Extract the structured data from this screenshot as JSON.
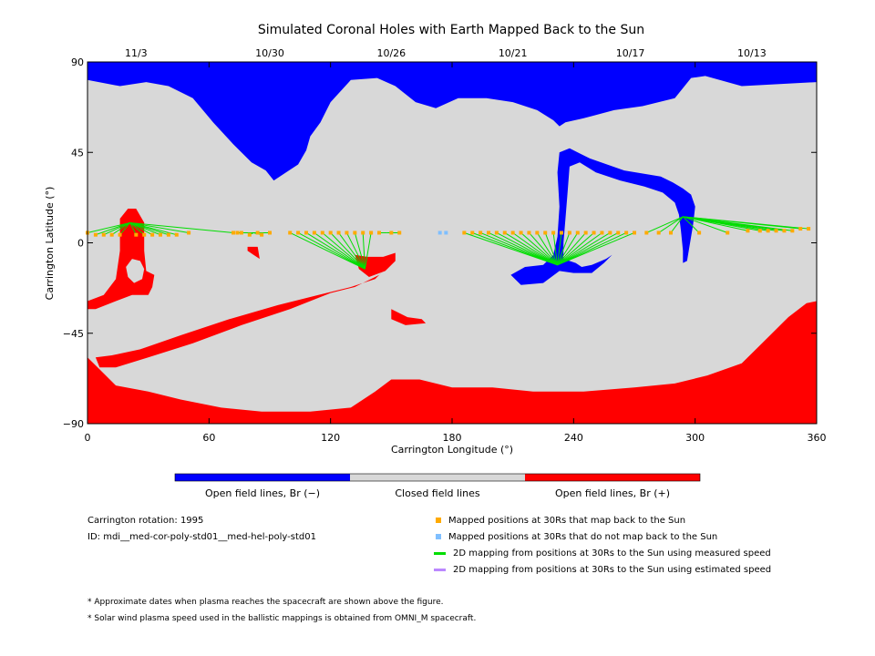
{
  "chart_data": {
    "type": "map",
    "title": "Simulated Coronal Holes with Earth Mapped Back to the Sun",
    "xlabel": "Carrington Longitude (°)",
    "ylabel": "Carrington Latitude (°)",
    "xlim": [
      0,
      360
    ],
    "ylim": [
      -90,
      90
    ],
    "x_ticks": [
      "0",
      "60",
      "120",
      "180",
      "240",
      "300",
      "360"
    ],
    "y_ticks": [
      "90",
      "45",
      "0",
      "-45",
      "-90"
    ],
    "top_dates": [
      {
        "lon": 24,
        "label": "11/3"
      },
      {
        "lon": 90,
        "label": "10/30"
      },
      {
        "lon": 150,
        "label": "10/26"
      },
      {
        "lon": 210,
        "label": "10/21"
      },
      {
        "lon": 268,
        "label": "10/17"
      },
      {
        "lon": 328,
        "label": "10/13"
      }
    ],
    "colors": {
      "open_negative": "#0000ff",
      "closed": "#d8d8d8",
      "open_positive": "#ff0000",
      "mapped_back": "#ffaa00",
      "not_mapped": "#7fbfff",
      "measured_line": "#00dd00",
      "estimated_line": "#bb88ff"
    },
    "colorbar": [
      {
        "label": "Open field lines, Br (−)",
        "color": "#0000ff"
      },
      {
        "label": "Closed field lines",
        "color": "#d8d8d8"
      },
      {
        "label": "Open field lines, Br (+)",
        "color": "#ff0000"
      }
    ],
    "regions": [
      {
        "name": "north polar hole",
        "polarity": "-",
        "outline": [
          [
            0,
            90
          ],
          [
            360,
            90
          ],
          [
            360,
            80
          ],
          [
            323,
            78
          ],
          [
            305,
            83
          ],
          [
            298,
            82
          ],
          [
            290,
            72
          ],
          [
            274,
            68
          ],
          [
            260,
            66
          ],
          [
            245,
            62
          ],
          [
            236,
            60
          ],
          [
            233,
            58
          ],
          [
            230,
            61
          ],
          [
            222,
            66
          ],
          [
            210,
            70
          ],
          [
            197,
            72
          ],
          [
            183,
            72
          ],
          [
            172,
            67
          ],
          [
            162,
            70
          ],
          [
            152,
            78
          ],
          [
            143,
            82
          ],
          [
            130,
            81
          ],
          [
            120,
            70
          ],
          [
            115,
            60
          ],
          [
            110,
            53
          ],
          [
            108,
            46
          ],
          [
            104,
            39
          ],
          [
            98,
            35
          ],
          [
            92,
            31
          ],
          [
            88,
            36
          ],
          [
            81,
            40
          ],
          [
            72,
            49
          ],
          [
            62,
            60
          ],
          [
            52,
            72
          ],
          [
            40,
            78
          ],
          [
            29,
            80
          ],
          [
            16,
            78
          ],
          [
            0,
            81
          ]
        ]
      },
      {
        "name": "mid-latitude hole",
        "polarity": "-",
        "outline": [
          [
            233,
            45
          ],
          [
            238,
            47
          ],
          [
            248,
            42
          ],
          [
            265,
            36
          ],
          [
            283,
            33
          ],
          [
            289,
            30
          ],
          [
            294,
            27
          ],
          [
            298,
            24
          ],
          [
            300,
            18
          ],
          [
            299,
            9
          ],
          [
            297,
            -3
          ],
          [
            296,
            -9
          ],
          [
            294,
            -10
          ],
          [
            294,
            -4
          ],
          [
            293,
            6
          ],
          [
            292,
            14
          ],
          [
            290,
            20
          ],
          [
            284,
            25
          ],
          [
            275,
            28
          ],
          [
            263,
            31
          ],
          [
            251,
            35
          ],
          [
            243,
            40
          ],
          [
            238,
            38
          ],
          [
            237,
            25
          ],
          [
            236,
            12
          ],
          [
            235,
            0
          ],
          [
            235,
            -8
          ],
          [
            241,
            -10
          ],
          [
            244,
            -12
          ],
          [
            249,
            -11
          ],
          [
            256,
            -8
          ],
          [
            259,
            -6
          ],
          [
            255,
            -10
          ],
          [
            249,
            -15
          ],
          [
            240,
            -15
          ],
          [
            233,
            -14
          ],
          [
            225,
            -20
          ],
          [
            214,
            -21
          ],
          [
            209,
            -16
          ],
          [
            216,
            -12
          ],
          [
            225,
            -11
          ],
          [
            230,
            -6
          ],
          [
            232,
            3
          ],
          [
            233,
            18
          ],
          [
            232,
            35
          ]
        ]
      },
      {
        "name": "south polar hole",
        "polarity": "+",
        "outline": [
          [
            0,
            -90
          ],
          [
            360,
            -90
          ],
          [
            360,
            -29
          ],
          [
            355,
            -30
          ],
          [
            346,
            -37
          ],
          [
            337,
            -46
          ],
          [
            323,
            -60
          ],
          [
            306,
            -66
          ],
          [
            290,
            -70
          ],
          [
            270,
            -72
          ],
          [
            245,
            -74
          ],
          [
            220,
            -74
          ],
          [
            200,
            -72
          ],
          [
            180,
            -72
          ],
          [
            164,
            -68
          ],
          [
            150,
            -68
          ],
          [
            142,
            -74
          ],
          [
            130,
            -82
          ],
          [
            110,
            -84
          ],
          [
            86,
            -84
          ],
          [
            66,
            -82
          ],
          [
            46,
            -78
          ],
          [
            30,
            -74
          ],
          [
            14,
            -71
          ],
          [
            6,
            -63
          ],
          [
            0,
            -57
          ]
        ]
      },
      {
        "name": "southern diagonal arm",
        "polarity": "+",
        "outline": [
          [
            4,
            -57
          ],
          [
            12,
            -56
          ],
          [
            26,
            -53
          ],
          [
            46,
            -46
          ],
          [
            70,
            -38
          ],
          [
            94,
            -31
          ],
          [
            114,
            -26
          ],
          [
            130,
            -22
          ],
          [
            142,
            -18
          ],
          [
            148,
            -12
          ],
          [
            144,
            -16
          ],
          [
            132,
            -22
          ],
          [
            120,
            -25
          ],
          [
            100,
            -33
          ],
          [
            76,
            -41
          ],
          [
            52,
            -50
          ],
          [
            30,
            -57
          ],
          [
            14,
            -62
          ],
          [
            6,
            -62
          ]
        ]
      },
      {
        "name": "western arm",
        "polarity": "+",
        "outline": [
          [
            0,
            -29
          ],
          [
            8,
            -26
          ],
          [
            14,
            -18
          ],
          [
            16,
            -4
          ],
          [
            16,
            12
          ],
          [
            20,
            17
          ],
          [
            24,
            17
          ],
          [
            28,
            10
          ],
          [
            28,
            -4
          ],
          [
            29,
            -14
          ],
          [
            33,
            -16
          ],
          [
            32,
            -22
          ],
          [
            30,
            -26
          ],
          [
            22,
            -26
          ],
          [
            14,
            -29
          ],
          [
            4,
            -33
          ],
          [
            0,
            -33
          ]
        ]
      },
      {
        "name": "longitude 80 spot",
        "polarity": "+",
        "outline": [
          [
            79,
            -2
          ],
          [
            84,
            -2
          ],
          [
            85,
            -8
          ],
          [
            82,
            -6
          ],
          [
            79,
            -4
          ]
        ]
      },
      {
        "name": "longitude 140 spot",
        "polarity": "+",
        "outline": [
          [
            132,
            -6
          ],
          [
            138,
            -7
          ],
          [
            146,
            -7
          ],
          [
            152,
            -5
          ],
          [
            152,
            -9
          ],
          [
            147,
            -14
          ],
          [
            139,
            -17
          ],
          [
            134,
            -13
          ]
        ]
      },
      {
        "name": "longitude 150 patch",
        "polarity": "+",
        "outline": [
          [
            150,
            -33
          ],
          [
            158,
            -37
          ],
          [
            165,
            -38
          ],
          [
            167,
            -40
          ],
          [
            157,
            -41
          ],
          [
            150,
            -38
          ]
        ]
      }
    ],
    "closed_islands": [
      {
        "name": "hole in western arm",
        "outline": [
          [
            19,
            -12
          ],
          [
            22,
            -8
          ],
          [
            26,
            -9
          ],
          [
            28,
            -13
          ],
          [
            27,
            -18
          ],
          [
            23,
            -20
          ],
          [
            20,
            -17
          ]
        ]
      }
    ],
    "footpoints": [
      {
        "lon": 21,
        "lat": 10
      },
      {
        "lon": 82,
        "lat": 5
      },
      {
        "lon": 137,
        "lat": -13
      },
      {
        "lon": 148,
        "lat": 5
      },
      {
        "lon": 232,
        "lat": -11
      },
      {
        "lon": 294,
        "lat": 13
      }
    ],
    "mapped_points_back": [
      {
        "lon": 0,
        "lat": 5,
        "foot": 0
      },
      {
        "lon": 4,
        "lat": 4,
        "foot": 0
      },
      {
        "lon": 8,
        "lat": 4,
        "foot": 0
      },
      {
        "lon": 12,
        "lat": 4,
        "foot": 0
      },
      {
        "lon": 16,
        "lat": 4,
        "foot": 0
      },
      {
        "lon": 24,
        "lat": 4,
        "foot": 0
      },
      {
        "lon": 28,
        "lat": 4,
        "foot": 0
      },
      {
        "lon": 32,
        "lat": 4,
        "foot": 0
      },
      {
        "lon": 36,
        "lat": 4,
        "foot": 0
      },
      {
        "lon": 40,
        "lat": 4,
        "foot": 0
      },
      {
        "lon": 44,
        "lat": 4,
        "foot": 0
      },
      {
        "lon": 50,
        "lat": 5,
        "foot": 0
      },
      {
        "lon": 72,
        "lat": 5,
        "foot": 0
      },
      {
        "lon": 74,
        "lat": 5,
        "foot": 1
      },
      {
        "lon": 76,
        "lat": 5,
        "foot": 1
      },
      {
        "lon": 80,
        "lat": 4,
        "foot": 1
      },
      {
        "lon": 84,
        "lat": 5,
        "foot": 1
      },
      {
        "lon": 86,
        "lat": 4,
        "foot": 1
      },
      {
        "lon": 90,
        "lat": 5,
        "foot": 1
      },
      {
        "lon": 100,
        "lat": 5,
        "foot": 2
      },
      {
        "lon": 104,
        "lat": 5,
        "foot": 2
      },
      {
        "lon": 108,
        "lat": 5,
        "foot": 2
      },
      {
        "lon": 112,
        "lat": 5,
        "foot": 2
      },
      {
        "lon": 116,
        "lat": 5,
        "foot": 2
      },
      {
        "lon": 120,
        "lat": 5,
        "foot": 2
      },
      {
        "lon": 124,
        "lat": 5,
        "foot": 2
      },
      {
        "lon": 128,
        "lat": 5,
        "foot": 2
      },
      {
        "lon": 132,
        "lat": 5,
        "foot": 2
      },
      {
        "lon": 136,
        "lat": 5,
        "foot": 2
      },
      {
        "lon": 140,
        "lat": 5,
        "foot": 2
      },
      {
        "lon": 144,
        "lat": 5,
        "foot": 3
      },
      {
        "lon": 150,
        "lat": 5,
        "foot": 3
      },
      {
        "lon": 154,
        "lat": 5,
        "foot": 3
      },
      {
        "lon": 186,
        "lat": 5,
        "foot": 4
      },
      {
        "lon": 190,
        "lat": 5,
        "foot": 4
      },
      {
        "lon": 194,
        "lat": 5,
        "foot": 4
      },
      {
        "lon": 198,
        "lat": 5,
        "foot": 4
      },
      {
        "lon": 202,
        "lat": 5,
        "foot": 4
      },
      {
        "lon": 206,
        "lat": 5,
        "foot": 4
      },
      {
        "lon": 210,
        "lat": 5,
        "foot": 4
      },
      {
        "lon": 214,
        "lat": 5,
        "foot": 4
      },
      {
        "lon": 218,
        "lat": 5,
        "foot": 4
      },
      {
        "lon": 222,
        "lat": 5,
        "foot": 4
      },
      {
        "lon": 226,
        "lat": 5,
        "foot": 4
      },
      {
        "lon": 230,
        "lat": 5,
        "foot": 4
      },
      {
        "lon": 234,
        "lat": 5,
        "foot": 4
      },
      {
        "lon": 238,
        "lat": 5,
        "foot": 4
      },
      {
        "lon": 242,
        "lat": 5,
        "foot": 4
      },
      {
        "lon": 246,
        "lat": 5,
        "foot": 4
      },
      {
        "lon": 250,
        "lat": 5,
        "foot": 4
      },
      {
        "lon": 254,
        "lat": 5,
        "foot": 4
      },
      {
        "lon": 258,
        "lat": 5,
        "foot": 4
      },
      {
        "lon": 262,
        "lat": 5,
        "foot": 4
      },
      {
        "lon": 266,
        "lat": 5,
        "foot": 4
      },
      {
        "lon": 270,
        "lat": 5,
        "foot": 4
      },
      {
        "lon": 276,
        "lat": 5,
        "foot": 5
      },
      {
        "lon": 282,
        "lat": 5,
        "foot": 5
      },
      {
        "lon": 288,
        "lat": 5,
        "foot": 5
      },
      {
        "lon": 302,
        "lat": 5,
        "foot": 5
      },
      {
        "lon": 316,
        "lat": 5,
        "foot": 5
      },
      {
        "lon": 326,
        "lat": 6,
        "foot": 5
      },
      {
        "lon": 332,
        "lat": 6,
        "foot": 5
      },
      {
        "lon": 336,
        "lat": 6,
        "foot": 5
      },
      {
        "lon": 340,
        "lat": 6,
        "foot": 5
      },
      {
        "lon": 344,
        "lat": 6,
        "foot": 5
      },
      {
        "lon": 348,
        "lat": 6,
        "foot": 5
      },
      {
        "lon": 352,
        "lat": 7,
        "foot": 5
      },
      {
        "lon": 356,
        "lat": 7,
        "foot": 5
      }
    ],
    "mapped_points_not_back": [
      {
        "lon": 174,
        "lat": 5
      },
      {
        "lon": 177,
        "lat": 5
      }
    ]
  },
  "legend": {
    "mapped_back": "Mapped positions at 30Rs that map back to the Sun",
    "not_mapped": "Mapped positions at 30Rs that do not map back to the Sun",
    "measured": "2D mapping from positions at 30Rs to the Sun using measured speed",
    "estimated": "2D mapping from positions at 30Rs to the Sun using estimated speed"
  },
  "info": {
    "rotation": "Carrington rotation: 1995",
    "id": "ID: mdi__med-cor-poly-std01__med-hel-poly-std01"
  },
  "notes": [
    "* Approximate dates when plasma reaches the spacecraft are shown above the figure.",
    "* Solar wind plasma speed used in the ballistic mappings is obtained from OMNI_M spacecraft."
  ]
}
